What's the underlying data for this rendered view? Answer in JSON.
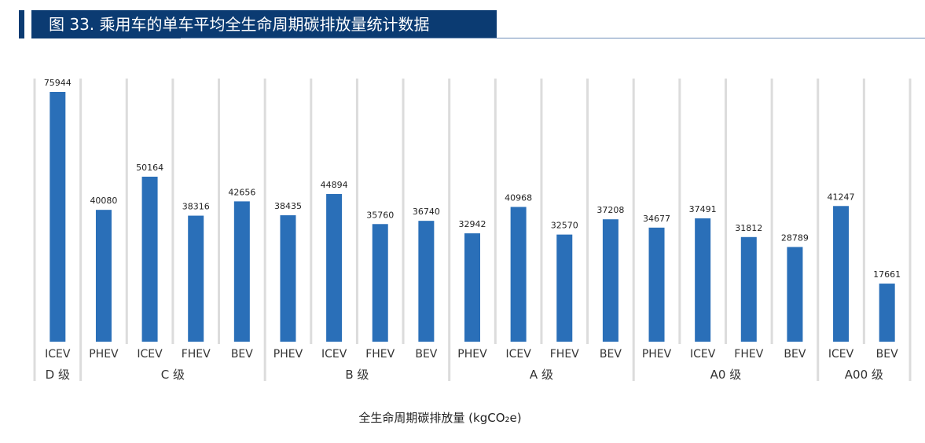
{
  "header": {
    "title": "图 33. 乘用车的单车平均全生命周期碳排放量统计数据"
  },
  "chart_data": {
    "type": "bar",
    "title": "图 33. 乘用车的单车平均全生命周期碳排放量统计数据",
    "xlabel": "全生命周期碳排放量 (kgCO₂e)",
    "ylabel": "",
    "ylim": [
      0,
      80000
    ],
    "grid": true,
    "bar_color": "#2a6fb8",
    "categories": [
      "ICEV",
      "PHEV",
      "ICEV",
      "FHEV",
      "BEV",
      "PHEV",
      "ICEV",
      "FHEV",
      "BEV",
      "PHEV",
      "ICEV",
      "FHEV",
      "BEV",
      "PHEV",
      "ICEV",
      "FHEV",
      "BEV",
      "ICEV",
      "BEV"
    ],
    "values": [
      75944,
      40080,
      50164,
      38316,
      42656,
      38435,
      44894,
      35760,
      36740,
      32942,
      40968,
      32570,
      37208,
      34677,
      37491,
      31812,
      28789,
      41247,
      17661
    ],
    "groups": [
      {
        "label": "D 级",
        "count": 1
      },
      {
        "label": "C 级",
        "count": 4
      },
      {
        "label": "B 级",
        "count": 4
      },
      {
        "label": "A 级",
        "count": 4
      },
      {
        "label": "A0 级",
        "count": 4
      },
      {
        "label": "A00 级",
        "count": 2
      }
    ]
  }
}
